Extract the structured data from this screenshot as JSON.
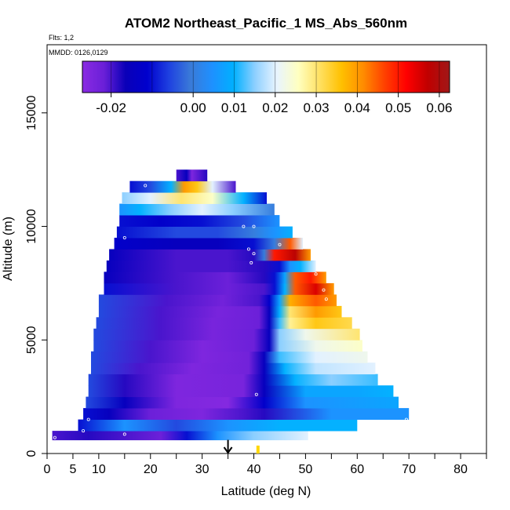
{
  "chart_data": {
    "type": "heatmap",
    "title": "ATOM2 Northeast_Pacific_1 MS_Abs_560nm",
    "subtitle": "Flts: 1,2",
    "annotation": "MMDD: 0126,0129",
    "xlabel": "Latitude (deg N)",
    "ylabel": "Altitude (m)",
    "xlim": [
      0,
      85
    ],
    "ylim": [
      0,
      18000
    ],
    "x_ticks": [
      0,
      5,
      10,
      20,
      30,
      40,
      50,
      60,
      70,
      80
    ],
    "x_minor_ticks": [
      15,
      25,
      35,
      45,
      55,
      65,
      75,
      85
    ],
    "y_ticks": [
      0,
      5000,
      10000,
      15000
    ],
    "grid": false,
    "legend_position": "top",
    "colorbar": {
      "min": -0.027,
      "max": 0.0625,
      "ticks": [
        -0.02,
        0.0,
        0.01,
        0.02,
        0.03,
        0.04,
        0.05,
        0.06
      ],
      "tick_labels": [
        "-0.02",
        "0.00",
        "0.01",
        "0.02",
        "0.03",
        "0.04",
        "0.05",
        "0.06"
      ],
      "colors": [
        "#8a2be2",
        "#6a1fd8",
        "#0a00b8",
        "#0000cd",
        "#1e40e0",
        "#3a7ad8",
        "#1e90ff",
        "#00b0ff",
        "#8fd0ff",
        "#e8f4ff",
        "#ffffc0",
        "#ffe060",
        "#ffc000",
        "#ff8c00",
        "#ff4000",
        "#ff0000",
        "#c00000",
        "#a01818"
      ]
    },
    "bands": [
      {
        "alt": [
          600,
          1000
        ],
        "lat": [
          1,
          50.5
        ],
        "stops": [
          [
            1,
            -0.02
          ],
          [
            8,
            -0.018
          ],
          [
            15,
            -0.02
          ],
          [
            22,
            -0.022
          ],
          [
            27,
            -0.01
          ],
          [
            33,
            0.005
          ],
          [
            40,
            0.015
          ],
          [
            50.5,
            0.02
          ]
        ]
      },
      {
        "alt": [
          1000,
          1500
        ],
        "lat": [
          6,
          60
        ],
        "stops": [
          [
            6,
            -0.01
          ],
          [
            15,
            0.005
          ],
          [
            25,
            -0.005
          ],
          [
            35,
            0.005
          ],
          [
            45,
            0.01
          ],
          [
            60,
            0.01
          ]
        ]
      },
      {
        "alt": [
          1500,
          2000
        ],
        "lat": [
          7,
          70
        ],
        "stops": [
          [
            7,
            -0.01
          ],
          [
            12,
            -0.015
          ],
          [
            20,
            -0.022
          ],
          [
            30,
            -0.025
          ],
          [
            38,
            -0.02
          ],
          [
            42,
            -0.018
          ],
          [
            48,
            -0.005
          ],
          [
            55,
            0.005
          ],
          [
            70,
            0.005
          ]
        ]
      },
      {
        "alt": [
          2000,
          2500
        ],
        "lat": [
          7.5,
          68
        ],
        "stops": [
          [
            7.5,
            -0.005
          ],
          [
            15,
            -0.015
          ],
          [
            25,
            -0.025
          ],
          [
            35,
            -0.026
          ],
          [
            42,
            -0.012
          ],
          [
            50,
            0.005
          ],
          [
            68,
            0.008
          ]
        ]
      },
      {
        "alt": [
          2500,
          3000
        ],
        "lat": [
          8,
          67
        ],
        "stops": [
          [
            8,
            -0.005
          ],
          [
            15,
            -0.018
          ],
          [
            25,
            -0.025
          ],
          [
            38,
            -0.024
          ],
          [
            42,
            -0.015
          ],
          [
            50,
            0.008
          ],
          [
            60,
            0.008
          ],
          [
            67,
            0.01
          ]
        ]
      },
      {
        "alt": [
          3000,
          3500
        ],
        "lat": [
          8,
          64
        ],
        "stops": [
          [
            8,
            -0.005
          ],
          [
            15,
            -0.018
          ],
          [
            25,
            -0.025
          ],
          [
            38,
            -0.024
          ],
          [
            42,
            -0.015
          ],
          [
            48,
            0.01
          ],
          [
            55,
            0.015
          ],
          [
            64,
            0.012
          ]
        ]
      },
      {
        "alt": [
          3500,
          4000
        ],
        "lat": [
          8.5,
          63.5
        ],
        "stops": [
          [
            8.5,
            -0.005
          ],
          [
            18,
            -0.02
          ],
          [
            28,
            -0.025
          ],
          [
            39,
            -0.023
          ],
          [
            42,
            -0.015
          ],
          [
            46,
            0.01
          ],
          [
            52,
            0.018
          ],
          [
            63.5,
            0.02
          ]
        ]
      },
      {
        "alt": [
          4000,
          4500
        ],
        "lat": [
          8.5,
          62
        ],
        "stops": [
          [
            8.5,
            -0.005
          ],
          [
            20,
            -0.02
          ],
          [
            30,
            -0.025
          ],
          [
            39,
            -0.023
          ],
          [
            42,
            -0.015
          ],
          [
            45,
            0.012
          ],
          [
            52,
            0.02
          ],
          [
            62,
            0.022
          ]
        ]
      },
      {
        "alt": [
          4500,
          5000
        ],
        "lat": [
          9,
          61
        ],
        "stops": [
          [
            9,
            -0.005
          ],
          [
            20,
            -0.02
          ],
          [
            30,
            -0.025
          ],
          [
            40,
            -0.022
          ],
          [
            43,
            -0.015
          ],
          [
            45,
            0.015
          ],
          [
            52,
            0.022
          ],
          [
            61,
            0.025
          ]
        ]
      },
      {
        "alt": [
          5000,
          5500
        ],
        "lat": [
          9,
          60.5
        ],
        "stops": [
          [
            9,
            -0.005
          ],
          [
            22,
            -0.02
          ],
          [
            32,
            -0.024
          ],
          [
            40,
            -0.022
          ],
          [
            43,
            -0.015
          ],
          [
            45,
            0.015
          ],
          [
            50,
            0.022
          ],
          [
            60.5,
            0.03
          ]
        ]
      },
      {
        "alt": [
          5500,
          6000
        ],
        "lat": [
          9.5,
          59
        ],
        "stops": [
          [
            9.5,
            -0.005
          ],
          [
            22,
            -0.02
          ],
          [
            32,
            -0.024
          ],
          [
            41,
            -0.022
          ],
          [
            43,
            -0.015
          ],
          [
            45,
            0.012
          ],
          [
            47,
            0.028
          ],
          [
            52,
            0.035
          ],
          [
            59,
            0.032
          ]
        ]
      },
      {
        "alt": [
          6000,
          6500
        ],
        "lat": [
          10,
          57
        ],
        "stops": [
          [
            10,
            -0.005
          ],
          [
            22,
            -0.02
          ],
          [
            33,
            -0.024
          ],
          [
            41,
            -0.022
          ],
          [
            43,
            -0.015
          ],
          [
            45,
            0.01
          ],
          [
            47,
            0.03
          ],
          [
            52,
            0.04
          ],
          [
            57,
            0.035
          ]
        ]
      },
      {
        "alt": [
          6500,
          7000
        ],
        "lat": [
          10,
          56
        ],
        "stops": [
          [
            10,
            -0.005
          ],
          [
            23,
            -0.02
          ],
          [
            34,
            -0.023
          ],
          [
            41,
            -0.02
          ],
          [
            43,
            -0.012
          ],
          [
            45,
            0.008
          ],
          [
            47,
            0.038
          ],
          [
            52,
            0.045
          ],
          [
            56,
            0.04
          ]
        ]
      },
      {
        "alt": [
          7000,
          7500
        ],
        "lat": [
          11,
          55.5
        ],
        "stops": [
          [
            11,
            -0.01
          ],
          [
            25,
            -0.02
          ],
          [
            35,
            -0.022
          ],
          [
            42,
            -0.02
          ],
          [
            44,
            -0.01
          ],
          [
            46,
            0.01
          ],
          [
            48,
            0.045
          ],
          [
            52,
            0.055
          ],
          [
            55.5,
            0.04
          ]
        ]
      },
      {
        "alt": [
          7500,
          8000
        ],
        "lat": [
          11,
          54
        ],
        "stops": [
          [
            11,
            -0.015
          ],
          [
            25,
            -0.02
          ],
          [
            35,
            -0.022
          ],
          [
            42,
            -0.018
          ],
          [
            44,
            -0.01
          ],
          [
            46,
            0.008
          ],
          [
            48,
            0.045
          ],
          [
            51,
            0.05
          ],
          [
            54,
            0.04
          ]
        ]
      },
      {
        "alt": [
          8000,
          8500
        ],
        "lat": [
          11.5,
          52
        ],
        "stops": [
          [
            11.5,
            -0.015
          ],
          [
            25,
            -0.02
          ],
          [
            35,
            -0.02
          ],
          [
            42,
            -0.018
          ],
          [
            45,
            -0.01
          ],
          [
            47,
            0.005
          ],
          [
            49,
            0.01
          ],
          [
            52,
            0.02
          ]
        ]
      },
      {
        "alt": [
          8500,
          9000
        ],
        "lat": [
          12,
          51
        ],
        "stops": [
          [
            12,
            -0.015
          ],
          [
            25,
            -0.02
          ],
          [
            35,
            -0.02
          ],
          [
            40,
            -0.018
          ],
          [
            42,
            0.0
          ],
          [
            44,
            0.05
          ],
          [
            48,
            0.058
          ],
          [
            51,
            0.04
          ]
        ]
      },
      {
        "alt": [
          9000,
          9500
        ],
        "lat": [
          13,
          49.5
        ],
        "stops": [
          [
            13,
            -0.012
          ],
          [
            25,
            -0.015
          ],
          [
            33,
            -0.015
          ],
          [
            40,
            -0.01
          ],
          [
            44,
            0.0
          ],
          [
            47,
            0.045
          ],
          [
            49.5,
            0.02
          ]
        ]
      },
      {
        "alt": [
          9500,
          10000
        ],
        "lat": [
          13.5,
          47.5
        ],
        "stops": [
          [
            13.5,
            -0.01
          ],
          [
            25,
            -0.005
          ],
          [
            33,
            -0.005
          ],
          [
            40,
            0.0
          ],
          [
            44,
            0.005
          ],
          [
            47.5,
            0.01
          ]
        ]
      },
      {
        "alt": [
          10000,
          10500
        ],
        "lat": [
          14,
          45
        ],
        "stops": [
          [
            14,
            -0.01
          ],
          [
            22,
            -0.012
          ],
          [
            30,
            -0.01
          ],
          [
            38,
            -0.005
          ],
          [
            45,
            0.005
          ]
        ]
      },
      {
        "alt": [
          10500,
          11000
        ],
        "lat": [
          14,
          44
        ],
        "stops": [
          [
            14,
            0.005
          ],
          [
            18,
            0.01
          ],
          [
            24,
            0.015
          ],
          [
            30,
            0.02
          ],
          [
            36,
            0.015
          ],
          [
            44,
            0.0
          ]
        ]
      },
      {
        "alt": [
          11000,
          11500
        ],
        "lat": [
          14.5,
          42.5
        ],
        "stops": [
          [
            14.5,
            0.015
          ],
          [
            20,
            0.02
          ],
          [
            26,
            0.03
          ],
          [
            32,
            0.025
          ],
          [
            38,
            0.01
          ],
          [
            42.5,
            -0.01
          ]
        ]
      },
      {
        "alt": [
          11500,
          12000
        ],
        "lat": [
          16,
          36.5
        ],
        "stops": [
          [
            16,
            -0.01
          ],
          [
            20,
            -0.005
          ],
          [
            24,
            0.01
          ],
          [
            26.5,
            0.04
          ],
          [
            29,
            0.035
          ],
          [
            32,
            0.02
          ],
          [
            36.5,
            -0.02
          ]
        ]
      },
      {
        "alt": [
          12000,
          12500
        ],
        "lat": [
          25,
          31
        ],
        "stops": [
          [
            25,
            -0.02
          ],
          [
            27,
            -0.015
          ],
          [
            28,
            -0.025
          ],
          [
            31,
            -0.018
          ]
        ]
      }
    ],
    "markers": [
      [
        1.5,
        700
      ],
      [
        7,
        1000
      ],
      [
        8,
        1500
      ],
      [
        15,
        850
      ],
      [
        23,
        500
      ],
      [
        40.5,
        2600
      ],
      [
        69.5,
        1500
      ],
      [
        15,
        9500
      ],
      [
        10,
        10000
      ],
      [
        12.5,
        11800
      ],
      [
        19,
        11800
      ],
      [
        28.5,
        12600
      ],
      [
        38,
        10000
      ],
      [
        40,
        10000
      ],
      [
        39,
        9000
      ],
      [
        40,
        8800
      ],
      [
        39.5,
        8400
      ],
      [
        45,
        9200
      ],
      [
        50,
        9200
      ],
      [
        52,
        7900
      ],
      [
        53.5,
        7200
      ],
      [
        54,
        6800
      ]
    ],
    "arrow": {
      "lat": 35,
      "from_alt": 600,
      "to_alt": 0
    },
    "highlight": {
      "lat": 40.8,
      "alt": [
        0,
        350
      ],
      "color": "#ffd700"
    }
  }
}
